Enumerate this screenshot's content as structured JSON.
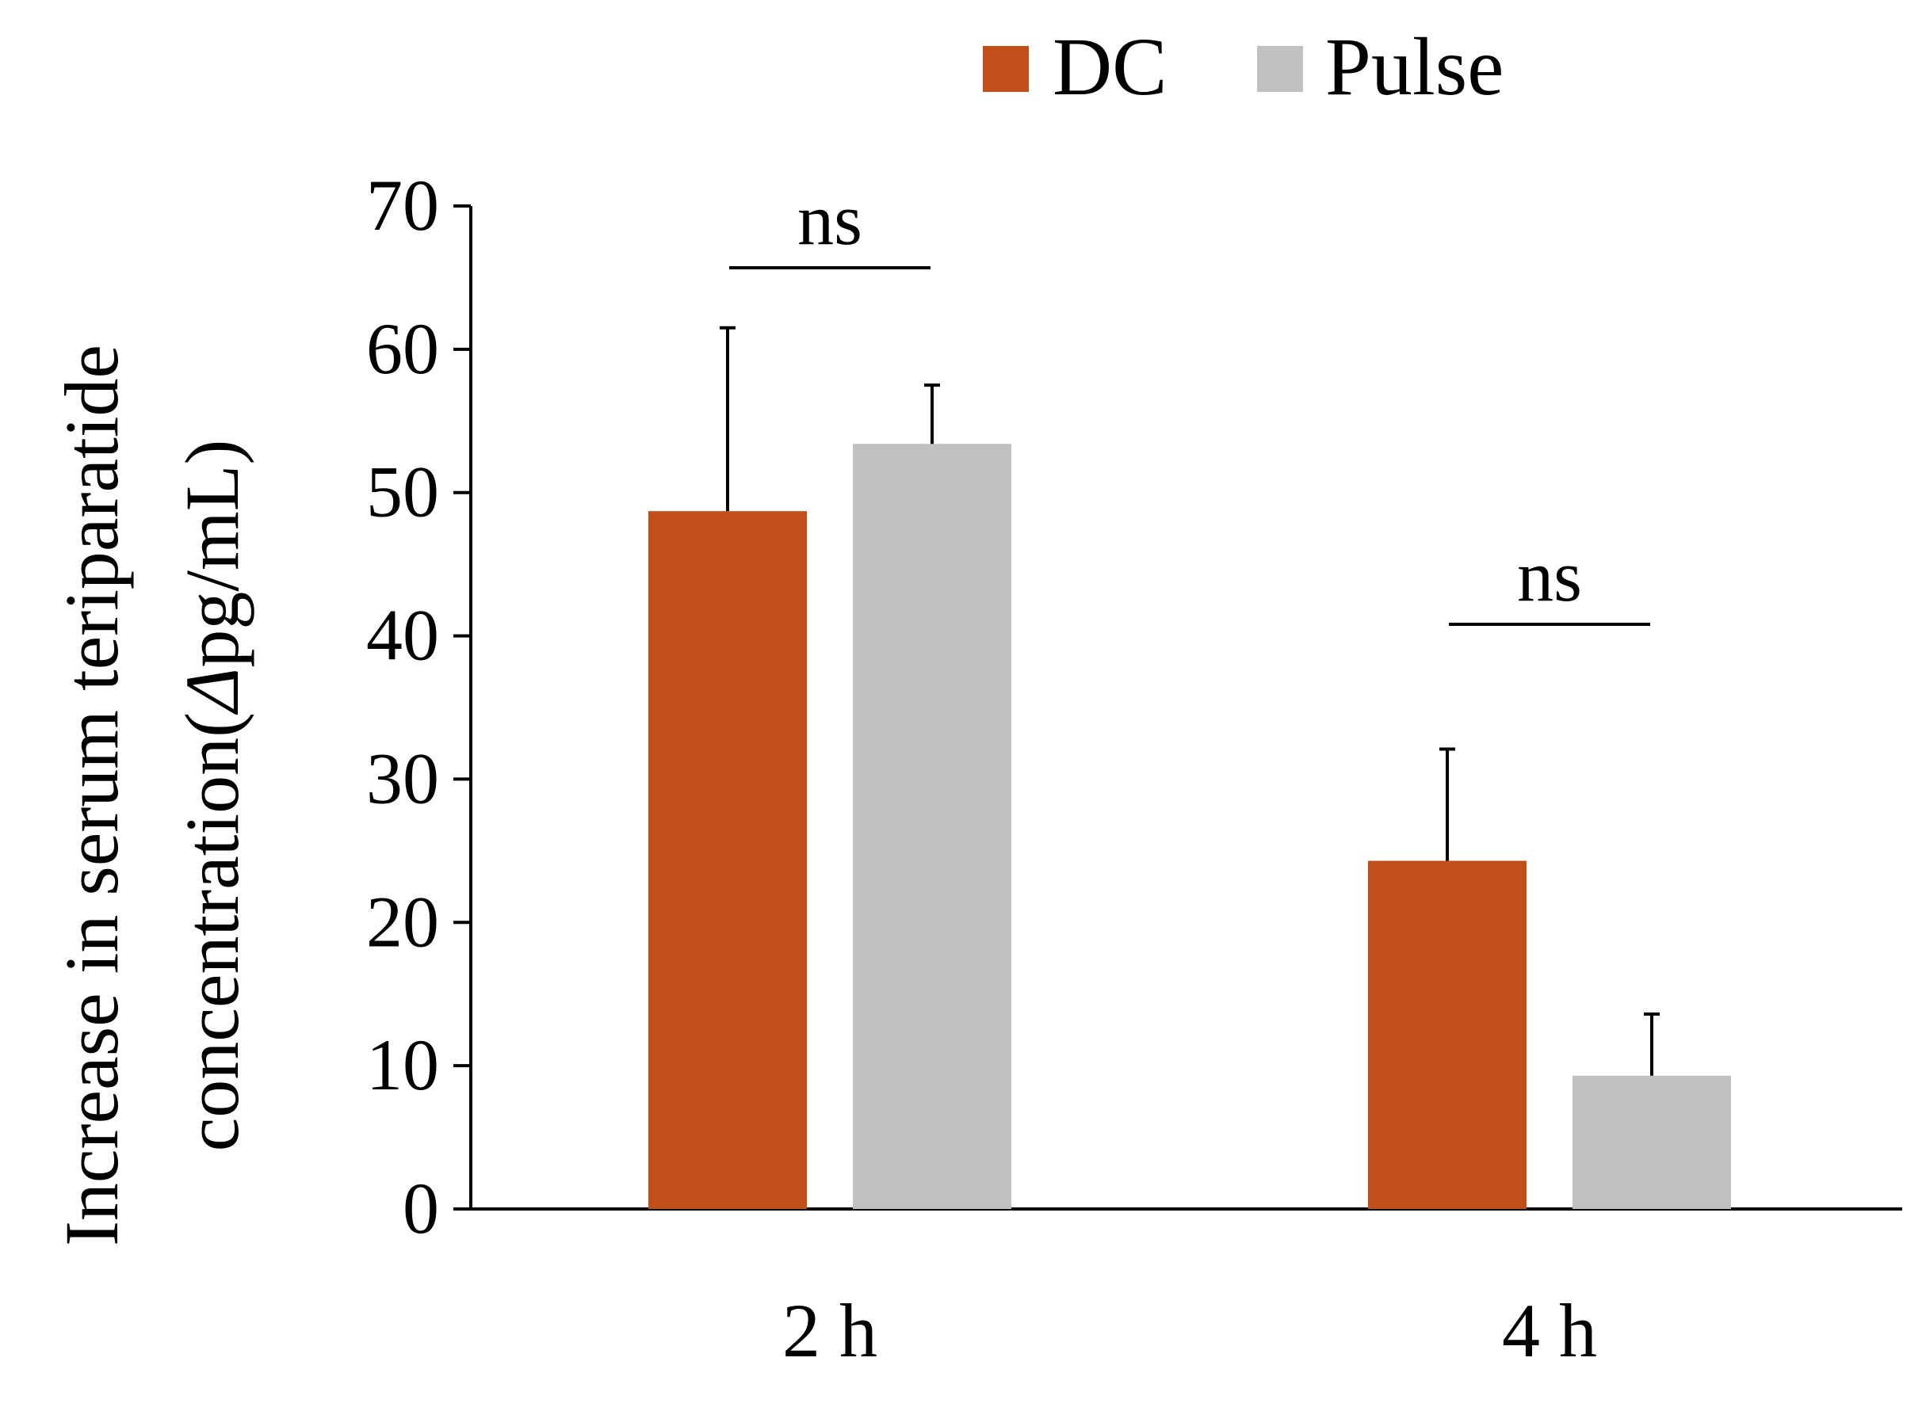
{
  "chart_data": {
    "type": "bar",
    "categories": [
      "2 h",
      "4 h"
    ],
    "series": [
      {
        "name": "DC",
        "color": "#c04f1a",
        "values": [
          48.7,
          24.3
        ],
        "error_upper": [
          61.5,
          32.1
        ]
      },
      {
        "name": "Pulse",
        "color": "#c0c0c0",
        "values": [
          53.4,
          9.3
        ],
        "error_upper": [
          57.5,
          13.6
        ]
      }
    ],
    "ylabel_line1": "Increase in serum teriparatide",
    "ylabel_line2_prefix": "concentration(",
    "ylabel_line2_delta": "Δ",
    "ylabel_line2_suffix": "pg/mL)",
    "ylim": [
      0,
      70
    ],
    "yticks": [
      0,
      10,
      20,
      30,
      40,
      50,
      60,
      70
    ],
    "ytick_labels": [
      "0",
      "10",
      "20",
      "30",
      "40",
      "50",
      "60",
      "70"
    ],
    "grid": false,
    "legend_position": "top-right",
    "annotations": [
      {
        "category": "2 h",
        "label": "ns"
      },
      {
        "category": "4 h",
        "label": "ns"
      }
    ]
  }
}
